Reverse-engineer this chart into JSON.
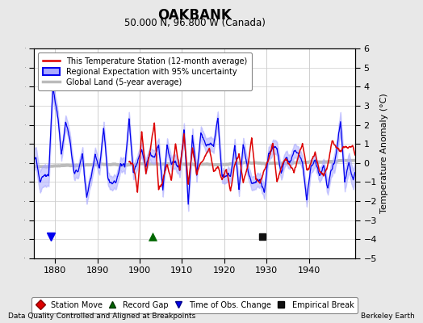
{
  "title": "OAKBANK",
  "subtitle": "50.000 N, 96.800 W (Canada)",
  "xlabel_bottom": "Data Quality Controlled and Aligned at Breakpoints",
  "xlabel_right": "Berkeley Earth",
  "ylabel": "Temperature Anomaly (°C)",
  "xlim": [
    1875,
    1951
  ],
  "ylim": [
    -5,
    6
  ],
  "yticks": [
    -5,
    -4,
    -3,
    -2,
    -1,
    0,
    1,
    2,
    3,
    4,
    5,
    6
  ],
  "xticks": [
    1880,
    1890,
    1900,
    1910,
    1920,
    1930,
    1940
  ],
  "background_color": "#e8e8e8",
  "plot_bg_color": "#ffffff",
  "grid_color": "#cccccc",
  "station_color": "#dd0000",
  "regional_color": "#0000ee",
  "regional_fill_color": "#aaaaff",
  "global_color": "#bbbbbb",
  "legend_labels": [
    "This Temperature Station (12-month average)",
    "Regional Expectation with 95% uncertainty",
    "Global Land (5-year average)"
  ],
  "marker_year_station_move": [],
  "marker_year_record_gap": [
    1903
  ],
  "marker_year_tobs_change": [
    1879
  ],
  "marker_year_empirical_break": [
    1929
  ],
  "marker_y": -3.85,
  "seed": 42
}
